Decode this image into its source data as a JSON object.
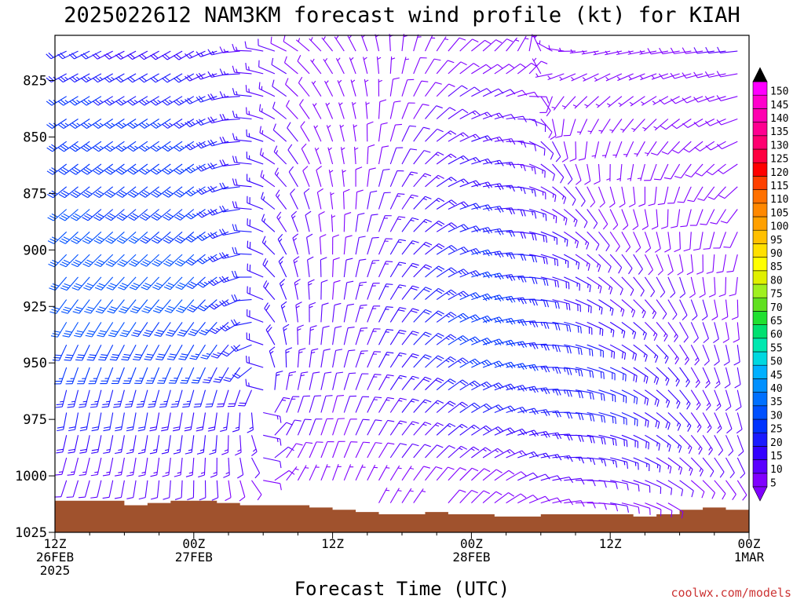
{
  "chart_data": {
    "type": "wind_barb_profile",
    "title": "2025022612 NAM3KM forecast wind profile (kt) for KIAH",
    "xlabel": "Forecast Time (UTC)",
    "ylabel": "",
    "credit": "coolwx.com/models",
    "y_axis": {
      "unit": "hPa",
      "range": [
        1025,
        805
      ],
      "ticks": [
        825,
        850,
        875,
        900,
        925,
        950,
        975,
        1000,
        1025
      ]
    },
    "x_axis": {
      "range_hours": [
        0,
        60
      ],
      "ticks": [
        {
          "hour": 0,
          "lines": [
            "12Z",
            "26FEB",
            "2025"
          ]
        },
        {
          "hour": 12,
          "lines": [
            "00Z",
            "27FEB"
          ]
        },
        {
          "hour": 24,
          "lines": [
            "12Z"
          ]
        },
        {
          "hour": 36,
          "lines": [
            "00Z",
            "28FEB"
          ]
        },
        {
          "hour": 48,
          "lines": [
            "12Z"
          ]
        },
        {
          "hour": 60,
          "lines": [
            "00Z",
            "1MAR"
          ]
        }
      ]
    },
    "colorbar": {
      "unit": "kt",
      "levels": [
        5,
        10,
        15,
        20,
        25,
        30,
        35,
        40,
        45,
        50,
        55,
        60,
        65,
        70,
        75,
        80,
        85,
        90,
        95,
        100,
        105,
        110,
        115,
        120,
        125,
        130,
        135,
        140,
        145,
        150
      ],
      "colors": [
        "#8000ff",
        "#5a00ff",
        "#3300ff",
        "#1a1aff",
        "#0033ff",
        "#0050ff",
        "#0070ff",
        "#0090ff",
        "#00b0ff",
        "#00d8e0",
        "#00e8b0",
        "#00e070",
        "#20e030",
        "#60e020",
        "#a0f020",
        "#e0f000",
        "#ffff00",
        "#ffe000",
        "#ffc000",
        "#ffa000",
        "#ff8800",
        "#ff7000",
        "#ff4000",
        "#ff0000",
        "#ff0040",
        "#ff0070",
        "#ff0090",
        "#ff00b0",
        "#ff00cc",
        "#ff00ff"
      ],
      "top_arrow_color": "#000000",
      "bottom_arrow_color": "#8000ff"
    },
    "terrain": {
      "color": "#a0522d",
      "time_hours": [
        0,
        6,
        8,
        10,
        12,
        14,
        16,
        18,
        20,
        22,
        24,
        26,
        28,
        30,
        32,
        34,
        36,
        38,
        40,
        42,
        44,
        46,
        48,
        50,
        52,
        54,
        56,
        58,
        60
      ],
      "surface_pressure_hpa": [
        1011,
        1013,
        1012,
        1011,
        1011,
        1012,
        1013,
        1013,
        1013,
        1014,
        1015,
        1016,
        1017,
        1017,
        1016,
        1017,
        1017,
        1018,
        1018,
        1017,
        1017,
        1017,
        1017,
        1018,
        1017,
        1015,
        1014,
        1015,
        1015
      ]
    },
    "columns": [
      {
        "hour": 0.5,
        "levels": [
          {
            "p": 1005,
            "dir": 200,
            "spd": 10
          },
          {
            "p": 990,
            "dir": 195,
            "spd": 15
          },
          {
            "p": 970,
            "dir": 190,
            "spd": 22
          },
          {
            "p": 950,
            "dir": 200,
            "spd": 28
          },
          {
            "p": 925,
            "dir": 215,
            "spd": 32
          },
          {
            "p": 900,
            "dir": 225,
            "spd": 32
          },
          {
            "p": 875,
            "dir": 230,
            "spd": 30
          },
          {
            "p": 850,
            "dir": 235,
            "spd": 28
          },
          {
            "p": 825,
            "dir": 240,
            "spd": 25
          },
          {
            "p": 810,
            "dir": 245,
            "spd": 20
          }
        ]
      },
      {
        "hour": 12,
        "levels": [
          {
            "p": 1005,
            "dir": 180,
            "spd": 10
          },
          {
            "p": 990,
            "dir": 185,
            "spd": 15
          },
          {
            "p": 970,
            "dir": 190,
            "spd": 20
          },
          {
            "p": 950,
            "dir": 205,
            "spd": 28
          },
          {
            "p": 925,
            "dir": 220,
            "spd": 30
          },
          {
            "p": 900,
            "dir": 228,
            "spd": 30
          },
          {
            "p": 875,
            "dir": 232,
            "spd": 28
          },
          {
            "p": 850,
            "dir": 236,
            "spd": 26
          },
          {
            "p": 825,
            "dir": 240,
            "spd": 22
          },
          {
            "p": 810,
            "dir": 240,
            "spd": 18
          }
        ]
      },
      {
        "hour": 24,
        "levels": [
          {
            "p": 1005,
            "dir": 20,
            "spd": 5
          },
          {
            "p": 990,
            "dir": 20,
            "spd": 8
          },
          {
            "p": 970,
            "dir": 15,
            "spd": 10
          },
          {
            "p": 950,
            "dir": 10,
            "spd": 10
          },
          {
            "p": 925,
            "dir": 5,
            "spd": 10
          },
          {
            "p": 900,
            "dir": 360,
            "spd": 8
          },
          {
            "p": 875,
            "dir": 350,
            "spd": 6
          },
          {
            "p": 850,
            "dir": 340,
            "spd": 5
          },
          {
            "p": 825,
            "dir": 330,
            "spd": 5
          },
          {
            "p": 810,
            "dir": 320,
            "spd": 5
          }
        ]
      },
      {
        "hour": 36,
        "levels": [
          {
            "p": 1005,
            "dir": 45,
            "spd": 8
          },
          {
            "p": 990,
            "dir": 55,
            "spd": 15
          },
          {
            "p": 970,
            "dir": 60,
            "spd": 22
          },
          {
            "p": 950,
            "dir": 65,
            "spd": 28
          },
          {
            "p": 925,
            "dir": 70,
            "spd": 28
          },
          {
            "p": 900,
            "dir": 75,
            "spd": 25
          },
          {
            "p": 875,
            "dir": 75,
            "spd": 20
          },
          {
            "p": 850,
            "dir": 70,
            "spd": 15
          },
          {
            "p": 825,
            "dir": 60,
            "spd": 10
          },
          {
            "p": 810,
            "dir": 50,
            "spd": 8
          }
        ]
      },
      {
        "hour": 48,
        "levels": [
          {
            "p": 1005,
            "dir": 100,
            "spd": 10
          },
          {
            "p": 990,
            "dir": 105,
            "spd": 18
          },
          {
            "p": 970,
            "dir": 110,
            "spd": 22
          },
          {
            "p": 950,
            "dir": 115,
            "spd": 20
          },
          {
            "p": 925,
            "dir": 125,
            "spd": 15
          },
          {
            "p": 900,
            "dir": 140,
            "spd": 10
          },
          {
            "p": 875,
            "dir": 160,
            "spd": 8
          },
          {
            "p": 850,
            "dir": 200,
            "spd": 6
          },
          {
            "p": 825,
            "dir": 240,
            "spd": 5
          },
          {
            "p": 810,
            "dir": 260,
            "spd": 5
          }
        ]
      },
      {
        "hour": 60,
        "levels": [
          {
            "p": 1005,
            "dir": 150,
            "spd": 8
          },
          {
            "p": 990,
            "dir": 160,
            "spd": 10
          },
          {
            "p": 970,
            "dir": 170,
            "spd": 10
          },
          {
            "p": 950,
            "dir": 175,
            "spd": 10
          },
          {
            "p": 925,
            "dir": 180,
            "spd": 8
          },
          {
            "p": 900,
            "dir": 200,
            "spd": 8
          },
          {
            "p": 875,
            "dir": 230,
            "spd": 8
          },
          {
            "p": 850,
            "dir": 250,
            "spd": 10
          },
          {
            "p": 825,
            "dir": 260,
            "spd": 10
          },
          {
            "p": 810,
            "dir": 265,
            "spd": 12
          }
        ]
      }
    ],
    "legend_position": "right"
  }
}
